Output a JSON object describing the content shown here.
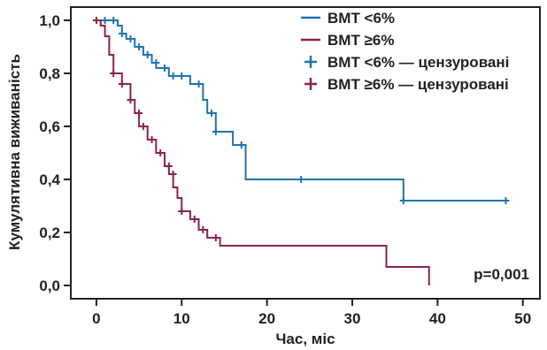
{
  "chart_data": {
    "type": "line",
    "step": true,
    "xlabel": "Час, міс",
    "ylabel": "Кумулятивна виживаність",
    "xlim": [
      -3,
      52
    ],
    "ylim": [
      -0.05,
      1.05
    ],
    "xticks": [
      0,
      10,
      20,
      30,
      40,
      50
    ],
    "yticks": [
      0.0,
      0.2,
      0.4,
      0.6,
      0.8,
      1.0
    ],
    "xtick_labels": [
      "0",
      "10",
      "20",
      "30",
      "40",
      "50"
    ],
    "ytick_labels": [
      "0,0",
      "0,2",
      "0,4",
      "0,6",
      "0,8",
      "1,0"
    ],
    "grid": false,
    "legend_position": "top-right",
    "legend": [
      {
        "label": "ВМТ <6%",
        "kind": "line",
        "series": 0
      },
      {
        "label": "ВМТ ≥6%",
        "kind": "line",
        "series": 1
      },
      {
        "label": "ВМТ <6% — цензуровані",
        "kind": "censor",
        "series": 0
      },
      {
        "label": "ВМТ ≥6% — цензуровані",
        "kind": "censor",
        "series": 1
      }
    ],
    "annotation": "p=0,001",
    "series": [
      {
        "name": "ВМТ <6%",
        "color": "#1f74b0",
        "steps": [
          [
            0,
            1.0
          ],
          [
            2.5,
            0.98
          ],
          [
            3.0,
            0.95
          ],
          [
            3.5,
            0.93
          ],
          [
            4.5,
            0.9
          ],
          [
            5.5,
            0.87
          ],
          [
            6.5,
            0.84
          ],
          [
            7.0,
            0.82
          ],
          [
            8.5,
            0.79
          ],
          [
            11.0,
            0.76
          ],
          [
            12.5,
            0.7
          ],
          [
            13.0,
            0.65
          ],
          [
            14.0,
            0.58
          ],
          [
            16.0,
            0.53
          ],
          [
            17.5,
            0.4
          ],
          [
            36.0,
            0.32
          ],
          [
            48.0,
            0.32
          ]
        ],
        "censored": [
          [
            1.0,
            1.0
          ],
          [
            2.0,
            1.0
          ],
          [
            3.0,
            0.95
          ],
          [
            4.0,
            0.93
          ],
          [
            5.0,
            0.9
          ],
          [
            6.0,
            0.87
          ],
          [
            7.0,
            0.84
          ],
          [
            8.0,
            0.82
          ],
          [
            9.0,
            0.79
          ],
          [
            10.0,
            0.79
          ],
          [
            12.0,
            0.76
          ],
          [
            13.5,
            0.65
          ],
          [
            14.0,
            0.58
          ],
          [
            17.0,
            0.53
          ],
          [
            24.0,
            0.4
          ],
          [
            36.0,
            0.32
          ],
          [
            48.0,
            0.32
          ]
        ]
      },
      {
        "name": "ВМТ ≥6%",
        "color": "#8b2252",
        "steps": [
          [
            0,
            1.0
          ],
          [
            0.5,
            0.98
          ],
          [
            1.0,
            0.94
          ],
          [
            1.5,
            0.87
          ],
          [
            2.0,
            0.8
          ],
          [
            3.0,
            0.76
          ],
          [
            4.0,
            0.7
          ],
          [
            4.5,
            0.65
          ],
          [
            5.0,
            0.6
          ],
          [
            6.0,
            0.55
          ],
          [
            7.0,
            0.5
          ],
          [
            8.0,
            0.45
          ],
          [
            8.5,
            0.42
          ],
          [
            9.0,
            0.37
          ],
          [
            9.5,
            0.33
          ],
          [
            10.0,
            0.28
          ],
          [
            11.0,
            0.25
          ],
          [
            12.0,
            0.21
          ],
          [
            13.0,
            0.18
          ],
          [
            14.5,
            0.15
          ],
          [
            34.0,
            0.07
          ],
          [
            39.0,
            0.0
          ]
        ],
        "censored": [
          [
            0.0,
            1.0
          ],
          [
            2.0,
            0.8
          ],
          [
            3.0,
            0.76
          ],
          [
            4.0,
            0.7
          ],
          [
            5.0,
            0.65
          ],
          [
            5.5,
            0.6
          ],
          [
            6.5,
            0.55
          ],
          [
            7.5,
            0.5
          ],
          [
            8.5,
            0.45
          ],
          [
            9.0,
            0.42
          ],
          [
            10.0,
            0.28
          ],
          [
            11.5,
            0.25
          ],
          [
            12.5,
            0.21
          ],
          [
            14.0,
            0.18
          ]
        ]
      }
    ]
  }
}
